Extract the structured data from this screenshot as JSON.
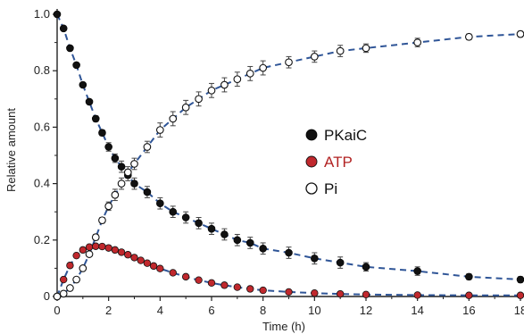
{
  "chart_data": {
    "type": "scatter",
    "xlabel": "Time (h)",
    "ylabel": "Relative amount",
    "xlim": [
      0,
      18
    ],
    "ylim": [
      0,
      1.0
    ],
    "xticks": [
      "0",
      "2",
      "4",
      "6",
      "8",
      "10",
      "12",
      "14",
      "16",
      "18"
    ],
    "yticks": [
      "0",
      "0.2",
      "0.4",
      "0.6",
      "0.8",
      "1.0"
    ],
    "legend_position": "center-right",
    "grid": false,
    "series": [
      {
        "name": "PKaiC",
        "marker": "filled-circle",
        "color": "#111111",
        "label_color": "#111111",
        "fit_color": "#2f5597",
        "x": [
          0,
          0.25,
          0.5,
          0.75,
          1.0,
          1.25,
          1.5,
          1.75,
          2.0,
          2.25,
          2.5,
          2.75,
          3.0,
          3.5,
          4.0,
          4.5,
          5.0,
          5.5,
          6.0,
          6.5,
          7.0,
          7.5,
          8.0,
          9.0,
          10.0,
          11.0,
          12.0,
          14.0,
          16.0,
          18.0
        ],
        "y": [
          1.0,
          0.95,
          0.88,
          0.82,
          0.75,
          0.69,
          0.63,
          0.58,
          0.53,
          0.49,
          0.46,
          0.43,
          0.4,
          0.37,
          0.33,
          0.3,
          0.28,
          0.26,
          0.24,
          0.22,
          0.2,
          0.19,
          0.17,
          0.155,
          0.135,
          0.12,
          0.105,
          0.09,
          0.07,
          0.06
        ],
        "err": [
          0,
          0,
          0,
          0,
          0,
          0,
          0.01,
          0.01,
          0.015,
          0.015,
          0.02,
          0.02,
          0.02,
          0.02,
          0.02,
          0.02,
          0.02,
          0.02,
          0.02,
          0.02,
          0.02,
          0.02,
          0.02,
          0.02,
          0.02,
          0.02,
          0.015,
          0.015,
          0.01,
          0.01
        ]
      },
      {
        "name": "ATP",
        "marker": "red-circle",
        "color": "#c0282d",
        "label_color": "#b22222",
        "fit_color": "#2f5597",
        "x": [
          0,
          0.25,
          0.5,
          0.75,
          1.0,
          1.25,
          1.5,
          1.75,
          2.0,
          2.25,
          2.5,
          2.75,
          3.0,
          3.25,
          3.5,
          3.75,
          4.0,
          4.5,
          5.0,
          5.5,
          6.0,
          6.5,
          7.0,
          7.5,
          8.0,
          9.0,
          10.0,
          11.0,
          12.0,
          14.0,
          16.0,
          18.0
        ],
        "y": [
          0.0,
          0.06,
          0.11,
          0.145,
          0.165,
          0.175,
          0.178,
          0.177,
          0.172,
          0.165,
          0.157,
          0.148,
          0.138,
          0.128,
          0.118,
          0.108,
          0.099,
          0.084,
          0.07,
          0.058,
          0.048,
          0.04,
          0.033,
          0.027,
          0.022,
          0.016,
          0.012,
          0.009,
          0.007,
          0.005,
          0.004,
          0.004
        ]
      },
      {
        "name": "Pi",
        "marker": "open-circle",
        "color": "#111111",
        "label_color": "#111111",
        "fit_color": "#2f5597",
        "x": [
          0,
          0.25,
          0.5,
          0.75,
          1.0,
          1.25,
          1.5,
          1.75,
          2.0,
          2.25,
          2.5,
          2.75,
          3.0,
          3.5,
          4.0,
          4.5,
          5.0,
          5.5,
          6.0,
          6.5,
          7.0,
          7.5,
          8.0,
          9.0,
          10.0,
          11.0,
          12.0,
          14.0,
          16.0,
          18.0
        ],
        "y": [
          0.0,
          0.01,
          0.03,
          0.06,
          0.1,
          0.15,
          0.21,
          0.27,
          0.32,
          0.36,
          0.4,
          0.44,
          0.47,
          0.53,
          0.59,
          0.63,
          0.67,
          0.7,
          0.73,
          0.75,
          0.77,
          0.79,
          0.81,
          0.83,
          0.85,
          0.87,
          0.88,
          0.9,
          0.92,
          0.93
        ],
        "err": [
          0,
          0,
          0,
          0,
          0,
          0,
          0.01,
          0.01,
          0.015,
          0.02,
          0.02,
          0.02,
          0.02,
          0.02,
          0.025,
          0.025,
          0.025,
          0.025,
          0.025,
          0.025,
          0.025,
          0.025,
          0.025,
          0.02,
          0.02,
          0.02,
          0.015,
          0.015,
          0.01,
          0.01
        ]
      }
    ]
  }
}
